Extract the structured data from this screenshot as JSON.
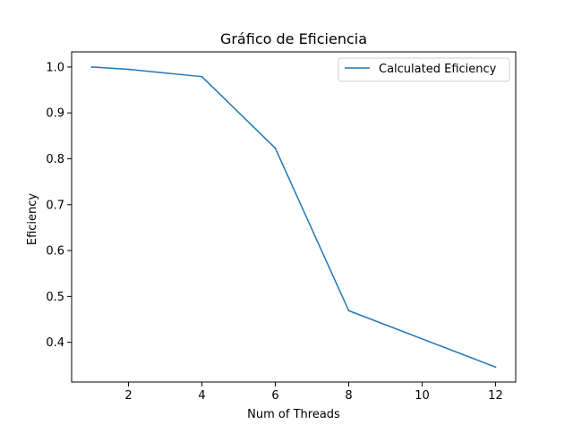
{
  "chart_data": {
    "type": "line",
    "title": "Gráfico de Eficiencia",
    "xlabel": "Num of Threads",
    "ylabel": "Eficiency",
    "xlim": [
      0.45,
      12.55
    ],
    "ylim": [
      0.3135,
      1.033
    ],
    "x_ticks": [
      2,
      4,
      6,
      8,
      10,
      12
    ],
    "y_ticks": [
      0.4,
      0.5,
      0.6,
      0.7,
      0.8,
      0.9,
      1.0
    ],
    "x_tick_labels": [
      "2",
      "4",
      "6",
      "8",
      "10",
      "12"
    ],
    "y_tick_labels": [
      "0.4",
      "0.5",
      "0.6",
      "0.7",
      "0.8",
      "0.9",
      "1.0"
    ],
    "grid": false,
    "legend_position": "upper-right",
    "series": [
      {
        "name": "Calculated Eficiency",
        "color": "#1f77b4",
        "x": [
          1,
          2,
          4,
          6,
          8,
          12
        ],
        "y": [
          1.0,
          0.995,
          0.979,
          0.823,
          0.469,
          0.346
        ]
      }
    ]
  }
}
